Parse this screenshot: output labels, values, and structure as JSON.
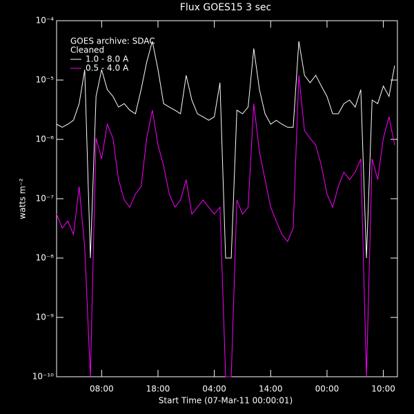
{
  "chart_data": {
    "type": "line",
    "title": "Flux  GOES15 3 sec",
    "xlabel": "Start Time (07-Mar-11 00:00:01)",
    "ylabel": "watts m⁻²",
    "ylog": true,
    "background": "#000000",
    "axis_color": "#ffffff",
    "legend_position": "top-left",
    "legend_header": [
      "GOES archive: SDAC",
      "Cleaned"
    ],
    "xlim": [
      0,
      60.5
    ],
    "xticks": [
      {
        "value": 8,
        "label": "08:00"
      },
      {
        "value": 18,
        "label": "18:00"
      },
      {
        "value": 28,
        "label": "04:00"
      },
      {
        "value": 38,
        "label": "14:00"
      },
      {
        "value": 48,
        "label": "00:00"
      },
      {
        "value": 58,
        "label": "10:00"
      }
    ],
    "ylim": [
      1e-10,
      0.0001
    ],
    "yticks": [
      {
        "value": 1e-10,
        "label": "10⁻¹⁰"
      },
      {
        "value": 1e-09,
        "label": "10⁻⁹"
      },
      {
        "value": 1e-08,
        "label": "10⁻⁸"
      },
      {
        "value": 1e-07,
        "label": "10⁻⁷"
      },
      {
        "value": 1e-06,
        "label": "10⁻⁶"
      },
      {
        "value": 1e-05,
        "label": "10⁻⁵"
      },
      {
        "value": 0.0001,
        "label": "10⁻⁴"
      }
    ],
    "x": [
      0,
      1,
      2,
      3,
      4,
      5,
      6,
      7,
      8,
      9,
      10,
      11,
      12,
      13,
      14,
      15,
      16,
      17,
      18,
      19,
      20,
      21,
      22,
      23,
      24,
      25,
      26,
      27,
      28,
      29,
      30,
      31,
      32,
      33,
      34,
      35,
      36,
      37,
      38,
      39,
      40,
      41,
      42,
      43,
      44,
      45,
      46,
      47,
      48,
      49,
      50,
      51,
      52,
      53,
      54,
      55,
      56,
      57,
      58,
      59,
      60
    ],
    "series": [
      {
        "name": "1.0 - 8.0 A",
        "color": "#ffffff",
        "values": [
          1.8e-06,
          1.6e-06,
          1.8e-06,
          2.1e-06,
          4e-06,
          1.5e-05,
          1e-08,
          5.3e-06,
          1.5e-05,
          6.9e-06,
          5.3e-06,
          3.5e-06,
          4e-06,
          3.1e-06,
          2.7e-06,
          6.9e-06,
          2e-05,
          4.5e-05,
          1.5e-05,
          4e-06,
          3.5e-06,
          3.1e-06,
          2.7e-06,
          1.2e-05,
          4.6e-06,
          2.7e-06,
          2.4e-06,
          2.1e-06,
          2.4e-06,
          9e-06,
          1e-08,
          1e-08,
          3.1e-06,
          2.7e-06,
          3.5e-06,
          3.4e-05,
          6.9e-06,
          2.7e-06,
          1.8e-06,
          2.1e-06,
          1.8e-06,
          1.6e-06,
          1.6e-06,
          4.5e-05,
          1.2e-05,
          9e-06,
          1.2e-05,
          7.9e-06,
          5.3e-06,
          2.7e-06,
          2.7e-06,
          4e-06,
          4.6e-06,
          3.5e-06,
          6.9e-06,
          1e-08,
          4.6e-06,
          4e-06,
          7.9e-06,
          5.3e-06,
          1.75e-05
        ]
      },
      {
        "name": "0.5 - 4.0 A",
        "color": "#ff00ff",
        "values": [
          5.5e-08,
          3.2e-08,
          4.2e-08,
          2.5e-08,
          1.6e-07,
          1.5e-08,
          1e-10,
          1.05e-06,
          4.7e-07,
          1.8e-06,
          1.05e-06,
          2.1e-07,
          9.5e-08,
          7.2e-08,
          1.2e-07,
          1.6e-07,
          1.05e-06,
          3.1e-06,
          8e-07,
          3.6e-07,
          1.2e-07,
          7.2e-08,
          9.5e-08,
          2.1e-07,
          5.5e-08,
          7.2e-08,
          9.5e-08,
          7.2e-08,
          5.5e-08,
          7.2e-08,
          1e-10,
          1e-10,
          9.5e-08,
          5.5e-08,
          7.2e-08,
          4e-06,
          6.2e-07,
          2.1e-07,
          7.2e-08,
          4.2e-08,
          2.5e-08,
          1.9e-08,
          3.2e-08,
          1.2e-05,
          1.4e-06,
          1.05e-06,
          8e-07,
          3.6e-07,
          1.2e-07,
          7.2e-08,
          1.6e-07,
          2.8e-07,
          2.1e-07,
          2.8e-07,
          4.7e-07,
          1e-10,
          4.7e-07,
          2.1e-07,
          1.05e-06,
          2.4e-06,
          8e-07
        ]
      }
    ]
  }
}
